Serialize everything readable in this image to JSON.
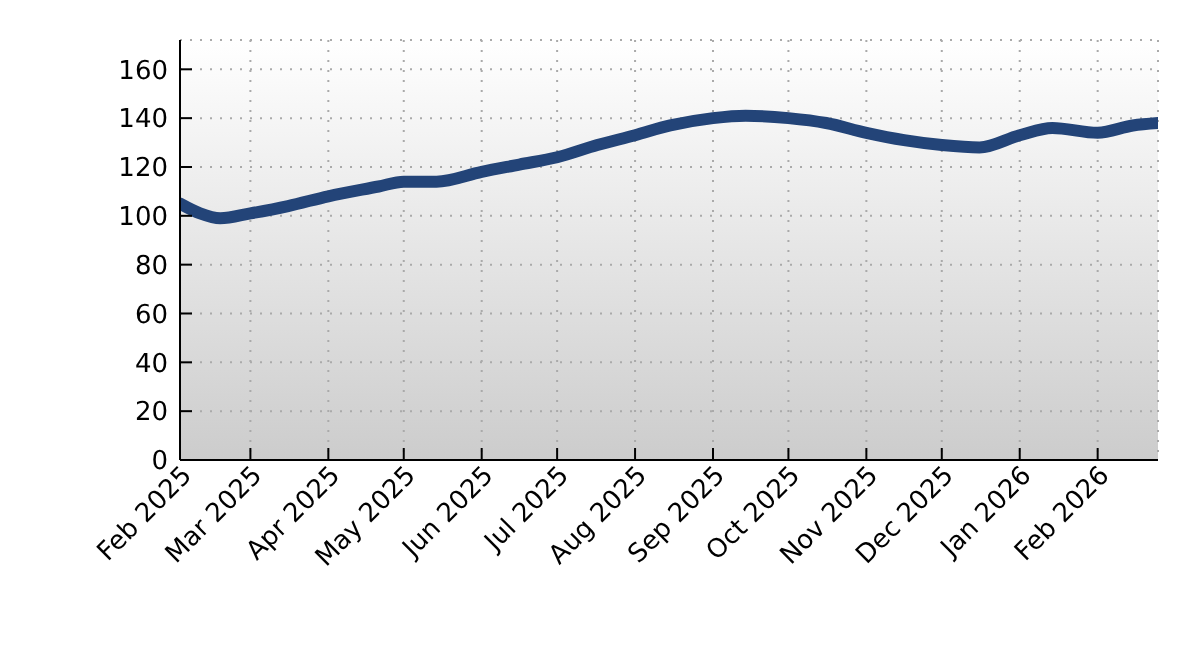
{
  "chart_data": {
    "type": "line",
    "x": [
      "2025-02-01",
      "2025-02-09",
      "2025-02-17",
      "2025-03-01",
      "2025-03-16",
      "2025-04-01",
      "2025-04-21",
      "2025-05-01",
      "2025-05-14",
      "2025-06-01",
      "2025-06-16",
      "2025-07-01",
      "2025-07-17",
      "2025-08-01",
      "2025-08-15",
      "2025-09-01",
      "2025-09-14",
      "2025-10-01",
      "2025-10-16",
      "2025-11-01",
      "2025-11-16",
      "2025-12-01",
      "2025-12-16",
      "2026-01-01",
      "2026-01-14",
      "2026-02-01",
      "2026-02-15",
      "2026-02-25"
    ],
    "series": [
      {
        "color": "#234478",
        "values": [
          105,
          101,
          99,
          101,
          104,
          108,
          112,
          114,
          114,
          118,
          121,
          124,
          129,
          133,
          137,
          140,
          141,
          140,
          138,
          134,
          131,
          129,
          128,
          133,
          136,
          134,
          137,
          138
        ]
      }
    ],
    "xlim": [
      "2025-02-01",
      "2026-02-25"
    ],
    "xticks": [
      {
        "value": "2025-02-01",
        "label": "Feb 2025"
      },
      {
        "value": "2025-03-01",
        "label": "Mar 2025"
      },
      {
        "value": "2025-04-01",
        "label": "Apr 2025"
      },
      {
        "value": "2025-05-01",
        "label": "May 2025"
      },
      {
        "value": "2025-06-01",
        "label": "Jun 2025"
      },
      {
        "value": "2025-07-01",
        "label": "Jul 2025"
      },
      {
        "value": "2025-08-01",
        "label": "Aug 2025"
      },
      {
        "value": "2025-09-01",
        "label": "Sep 2025"
      },
      {
        "value": "2025-10-01",
        "label": "Oct 2025"
      },
      {
        "value": "2025-11-01",
        "label": "Nov 2025"
      },
      {
        "value": "2025-12-01",
        "label": "Dec 2025"
      },
      {
        "value": "2026-01-01",
        "label": "Jan 2026"
      },
      {
        "value": "2026-02-01",
        "label": "Feb 2026"
      }
    ],
    "ylim": [
      0,
      172
    ],
    "yticks": [
      0,
      20,
      40,
      60,
      80,
      100,
      120,
      140,
      160
    ],
    "grid": true,
    "legend": false,
    "marker": "none",
    "line_style": "solid"
  }
}
